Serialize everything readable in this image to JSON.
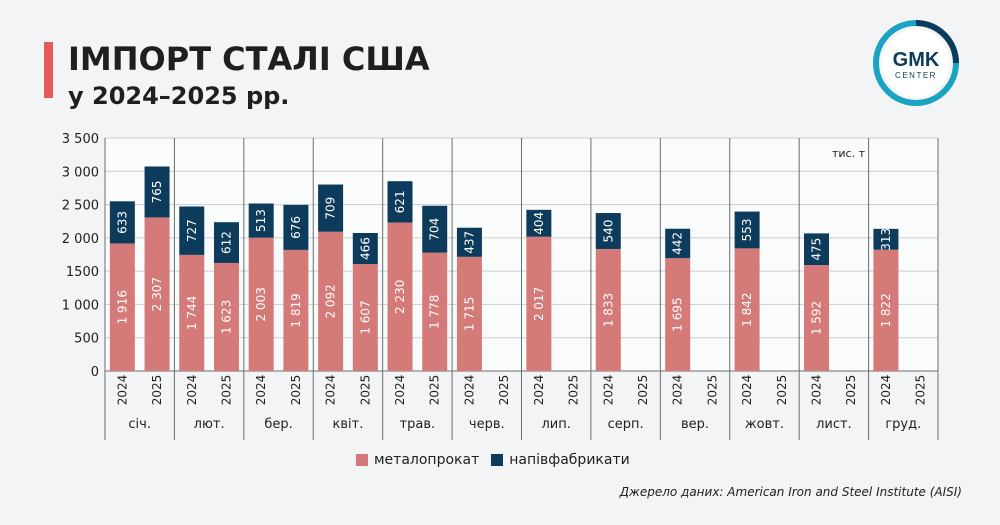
{
  "title": "ІМПОРТ СТАЛІ США",
  "subtitle": "у 2024–2025 рр.",
  "logo": {
    "top": "GMK",
    "bottom": "CENTER"
  },
  "unit_label": "тис. т",
  "source": "Джерело даних: American Iron and Steel Institute (AISI)",
  "colors": {
    "metal": "#d47a78",
    "semi": "#0d3b5c",
    "accent": "#e45b59"
  },
  "chart_data": {
    "type": "bar",
    "stacked": true,
    "ylim": [
      0,
      3500
    ],
    "yticks": [
      0,
      500,
      1000,
      1500,
      2000,
      2500,
      3000,
      3500
    ],
    "ytick_labels": [
      "0",
      "500",
      "1 000",
      "1500",
      "2 000",
      "2 500",
      "3 000",
      "3 500"
    ],
    "groups": [
      "січ.",
      "лют.",
      "бер.",
      "квіт.",
      "трав.",
      "черв.",
      "лип.",
      "серп.",
      "вер.",
      "жовт.",
      "лист.",
      "груд."
    ],
    "sub_categories": [
      "2024",
      "2025"
    ],
    "series": [
      {
        "name": "металопрокат",
        "color": "#d47a78",
        "values": [
          [
            1916,
            2307
          ],
          [
            1744,
            1623
          ],
          [
            2003,
            1819
          ],
          [
            2092,
            1607
          ],
          [
            2230,
            1778
          ],
          [
            1715,
            null
          ],
          [
            2017,
            null
          ],
          [
            1833,
            null
          ],
          [
            1695,
            null
          ],
          [
            1842,
            null
          ],
          [
            1592,
            null
          ],
          [
            1822,
            null
          ]
        ],
        "labels": [
          [
            "1 916",
            "2 307"
          ],
          [
            "1 744",
            "1 623"
          ],
          [
            "2 003",
            "1 819"
          ],
          [
            "2 092",
            "1 607"
          ],
          [
            "2 230",
            "1 778"
          ],
          [
            "1 715",
            ""
          ],
          [
            "2 017",
            ""
          ],
          [
            "1 833",
            ""
          ],
          [
            "1 695",
            ""
          ],
          [
            "1 842",
            ""
          ],
          [
            "1 592",
            ""
          ],
          [
            "1 822",
            ""
          ]
        ]
      },
      {
        "name": "напівфабрикати",
        "color": "#0d3b5c",
        "values": [
          [
            633,
            765
          ],
          [
            727,
            612
          ],
          [
            513,
            676
          ],
          [
            709,
            466
          ],
          [
            621,
            704
          ],
          [
            437,
            null
          ],
          [
            404,
            null
          ],
          [
            540,
            null
          ],
          [
            442,
            null
          ],
          [
            553,
            null
          ],
          [
            475,
            null
          ],
          [
            313,
            null
          ]
        ],
        "labels": [
          [
            "633",
            "765"
          ],
          [
            "727",
            "612"
          ],
          [
            "513",
            "676"
          ],
          [
            "709",
            "466"
          ],
          [
            "621",
            "704"
          ],
          [
            "437",
            ""
          ],
          [
            "404",
            ""
          ],
          [
            "540",
            ""
          ],
          [
            "442",
            ""
          ],
          [
            "553",
            ""
          ],
          [
            "475",
            ""
          ],
          [
            "313",
            ""
          ]
        ]
      }
    ]
  }
}
